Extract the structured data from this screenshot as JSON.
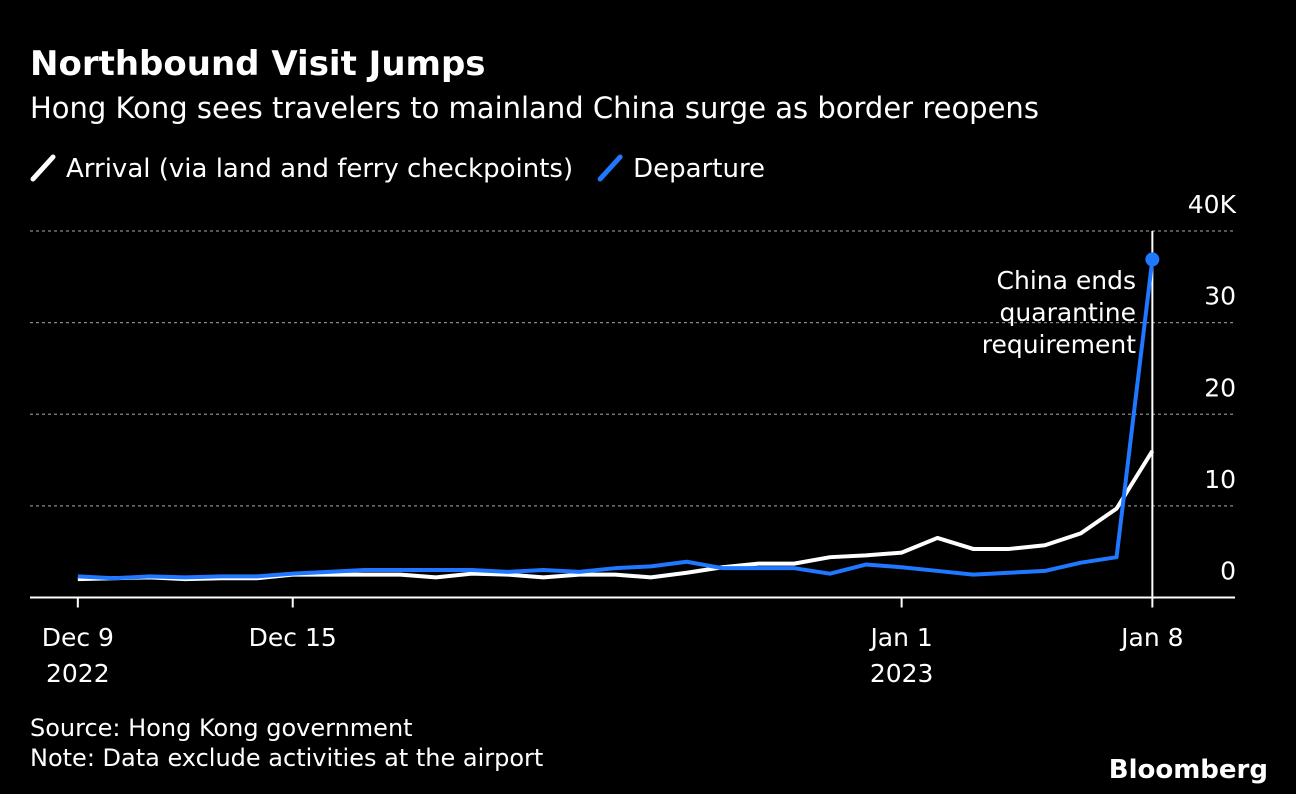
{
  "chart_data": {
    "type": "line",
    "title": "Northbound Visit Jumps",
    "subtitle": "Hong Kong sees travelers to mainland China surge as border reopens",
    "x": [
      "2022-12-09",
      "2022-12-10",
      "2022-12-11",
      "2022-12-12",
      "2022-12-13",
      "2022-12-14",
      "2022-12-15",
      "2022-12-16",
      "2022-12-17",
      "2022-12-18",
      "2022-12-19",
      "2022-12-20",
      "2022-12-21",
      "2022-12-22",
      "2022-12-23",
      "2022-12-24",
      "2022-12-25",
      "2022-12-26",
      "2022-12-27",
      "2022-12-28",
      "2022-12-29",
      "2022-12-30",
      "2022-12-31",
      "2023-01-01",
      "2023-01-02",
      "2023-01-03",
      "2023-01-04",
      "2023-01-05",
      "2023-01-06",
      "2023-01-07",
      "2023-01-08"
    ],
    "series": [
      {
        "name": "Arrival (via land and ferry checkpoints)",
        "color": "#ffffff",
        "values": [
          2.0,
          2.1,
          2.2,
          2.0,
          2.1,
          2.1,
          2.5,
          2.5,
          2.5,
          2.5,
          2.2,
          2.6,
          2.5,
          2.2,
          2.5,
          2.5,
          2.2,
          2.7,
          3.3,
          3.7,
          3.7,
          4.4,
          4.6,
          4.9,
          6.5,
          5.3,
          5.3,
          5.7,
          7.0,
          9.7,
          16.0
        ]
      },
      {
        "name": "Departure",
        "color": "#1f78ff",
        "values": [
          2.3,
          2.1,
          2.3,
          2.2,
          2.3,
          2.3,
          2.6,
          2.8,
          3.0,
          3.0,
          3.0,
          3.0,
          2.8,
          3.0,
          2.8,
          3.2,
          3.4,
          3.9,
          3.2,
          3.2,
          3.2,
          2.6,
          3.6,
          3.3,
          2.9,
          2.5,
          2.7,
          2.9,
          3.8,
          4.4,
          36.9
        ]
      }
    ],
    "xlim": [
      "2022-12-08",
      "2023-01-10"
    ],
    "xticks": [
      {
        "value": "2022-12-09",
        "label": [
          "Dec 9",
          "2022"
        ]
      },
      {
        "value": "2022-12-15",
        "label": [
          "Dec 15"
        ]
      },
      {
        "value": "2023-01-01",
        "label": [
          "Jan 1",
          "2023"
        ]
      },
      {
        "value": "2023-01-08",
        "label": [
          "Jan 8"
        ]
      }
    ],
    "ylim": [
      0,
      40
    ],
    "yticks": [
      0,
      10,
      20,
      30,
      {
        "value": 40,
        "label": "40K"
      }
    ],
    "grid": true,
    "annotation": [
      "China ends",
      "quarantine",
      "requirement"
    ],
    "source": "Source: Hong Kong government",
    "note": "Note: Data exclude activities at the airport",
    "brand": "Bloomberg"
  }
}
